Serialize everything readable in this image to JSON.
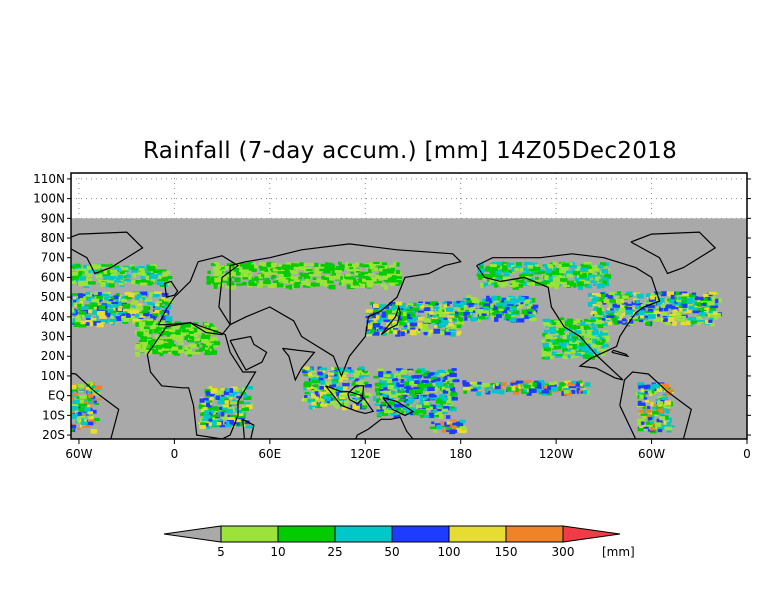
{
  "title": "Rainfall (7-day accum.) [mm] 14Z05Dec2018",
  "map": {
    "lon_range": [
      -65,
      0
    ],
    "lat_range": [
      -22,
      113
    ],
    "data_lat_range": [
      -20,
      90
    ],
    "no_data_color": "#a9a9a9",
    "y_ticks": [
      {
        "lat": 110,
        "label": "110N"
      },
      {
        "lat": 100,
        "label": "100N"
      },
      {
        "lat": 90,
        "label": "90N"
      },
      {
        "lat": 80,
        "label": "80N"
      },
      {
        "lat": 70,
        "label": "70N"
      },
      {
        "lat": 60,
        "label": "60N"
      },
      {
        "lat": 50,
        "label": "50N"
      },
      {
        "lat": 40,
        "label": "40N"
      },
      {
        "lat": 30,
        "label": "30N"
      },
      {
        "lat": 20,
        "label": "20N"
      },
      {
        "lat": 10,
        "label": "10N"
      },
      {
        "lat": 0,
        "label": "EQ"
      },
      {
        "lat": -10,
        "label": "10S"
      },
      {
        "lat": -20,
        "label": "20S"
      }
    ],
    "x_ticks": [
      {
        "lon": -60,
        "label": "60W"
      },
      {
        "lon": 0,
        "label": "0"
      },
      {
        "lon": 60,
        "label": "60E"
      },
      {
        "lon": 120,
        "label": "120E"
      },
      {
        "lon": 180,
        "label": "180"
      },
      {
        "lon": 240,
        "label": "120W"
      },
      {
        "lon": 300,
        "label": "60W"
      },
      {
        "lon": 360,
        "label": "0"
      }
    ]
  },
  "colorbar": {
    "unit": "[mm]",
    "colors": [
      "#a9a9a9",
      "#9be23a",
      "#00cc00",
      "#00c8c8",
      "#1e3cff",
      "#e6dc32",
      "#f08228",
      "#f03c46"
    ],
    "labels": [
      "5",
      "10",
      "25",
      "50",
      "100",
      "150",
      "300"
    ]
  }
}
